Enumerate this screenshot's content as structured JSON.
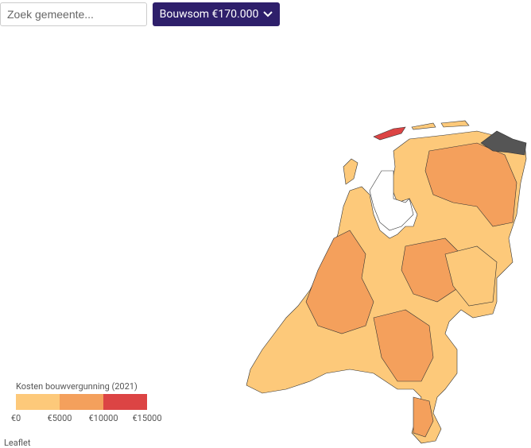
{
  "search": {
    "placeholder": "Zoek gemeente..."
  },
  "button": {
    "label": "Bouwsom €170.000"
  },
  "legend": {
    "title": "Kosten bouwvergunning (2021)",
    "labels": [
      "€0",
      "€5000",
      "€10000",
      "€15000"
    ],
    "colors": [
      "#fdc97a",
      "#f4a05c",
      "#dc4444"
    ]
  },
  "attribution": "Leaflet"
}
